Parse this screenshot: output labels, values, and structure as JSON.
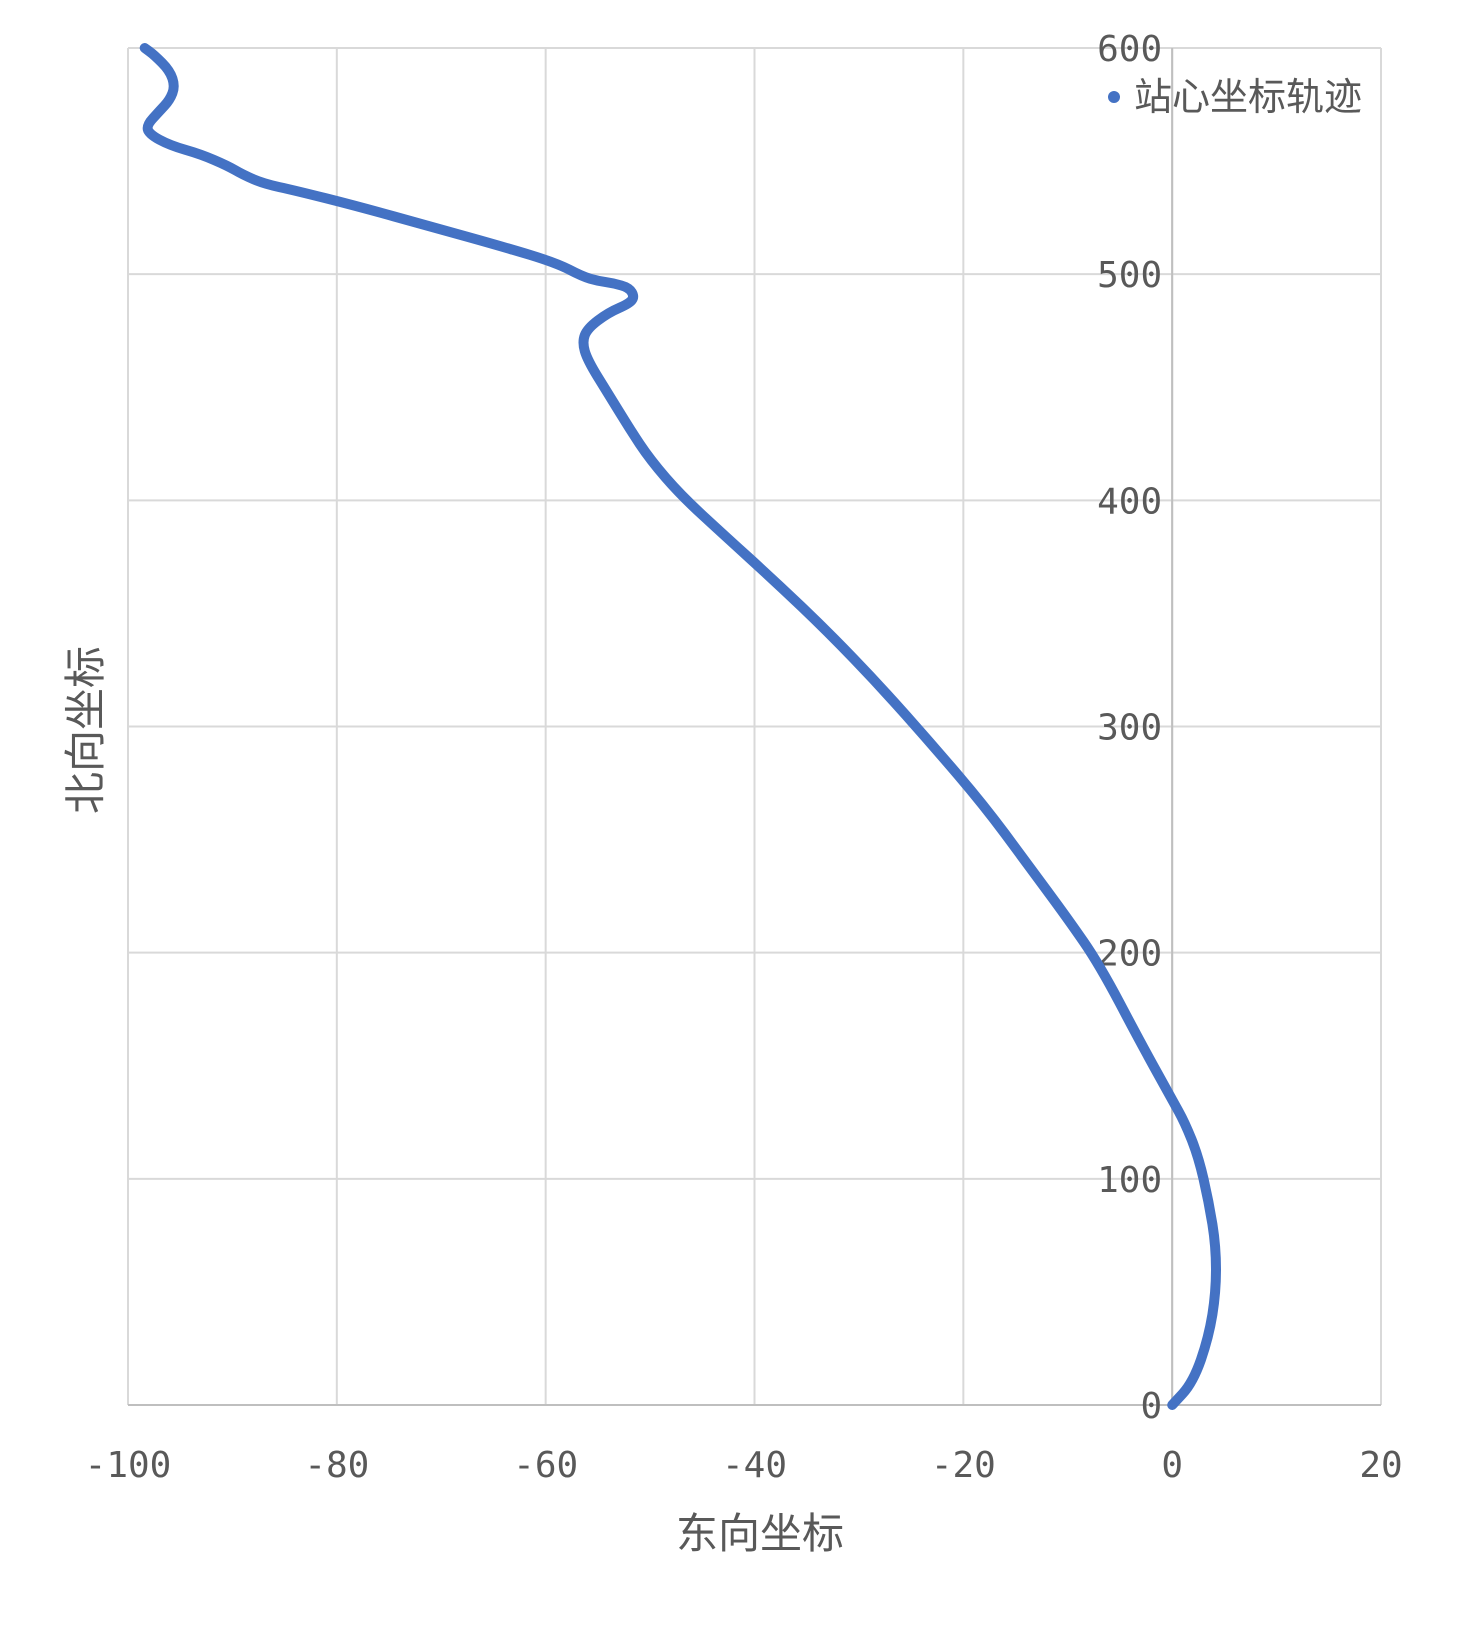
{
  "chart_data": {
    "type": "scatter",
    "xlabel": "东向坐标",
    "ylabel": "北向坐标",
    "xlim": [
      -100,
      20
    ],
    "ylim": [
      0,
      600
    ],
    "xticks": [
      -100,
      -80,
      -60,
      -40,
      -20,
      0,
      20
    ],
    "yticks": [
      0,
      100,
      200,
      300,
      400,
      500,
      600
    ],
    "grid": true,
    "legend_position": "top-right",
    "series": [
      {
        "name": "站心坐标轨迹",
        "color": "#4472c4",
        "points": [
          [
            0,
            0
          ],
          [
            2,
            10
          ],
          [
            3.5,
            30
          ],
          [
            4.2,
            50
          ],
          [
            4.2,
            70
          ],
          [
            3.5,
            90
          ],
          [
            2.5,
            110
          ],
          [
            1.2,
            125
          ],
          [
            0,
            135
          ],
          [
            -3,
            160
          ],
          [
            -7,
            195
          ],
          [
            -10,
            215
          ],
          [
            -14,
            240
          ],
          [
            -18,
            265
          ],
          [
            -23,
            292
          ],
          [
            -28,
            318
          ],
          [
            -33,
            342
          ],
          [
            -38,
            364
          ],
          [
            -43,
            385
          ],
          [
            -47,
            402
          ],
          [
            -50,
            418
          ],
          [
            -52,
            432
          ],
          [
            -54,
            447
          ],
          [
            -56,
            462
          ],
          [
            -56.5,
            470
          ],
          [
            -56,
            476
          ],
          [
            -54,
            483
          ],
          [
            -52,
            487
          ],
          [
            -51.5,
            490
          ],
          [
            -52,
            494
          ],
          [
            -53.5,
            496
          ],
          [
            -55,
            497
          ],
          [
            -56.5,
            499
          ],
          [
            -59,
            505
          ],
          [
            -64,
            512
          ],
          [
            -71,
            521
          ],
          [
            -78,
            530
          ],
          [
            -84,
            537
          ],
          [
            -87,
            540
          ],
          [
            -89,
            544
          ],
          [
            -90.5,
            548
          ],
          [
            -93,
            553
          ],
          [
            -96,
            557
          ],
          [
            -98,
            562
          ],
          [
            -98.2,
            566
          ],
          [
            -97,
            572
          ],
          [
            -96,
            577
          ],
          [
            -95.5,
            583
          ],
          [
            -96,
            590
          ],
          [
            -97.5,
            597
          ],
          [
            -98.4,
            600
          ]
        ]
      }
    ]
  }
}
